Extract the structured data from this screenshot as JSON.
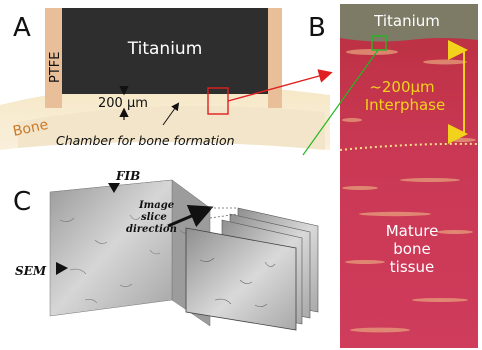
{
  "panels": {
    "a": {
      "letter": "A",
      "titanium": "Titanium",
      "ptfe": "PTFE",
      "bone": "Bone",
      "gap": "200 µm",
      "chamber": "Chamber for bone formation"
    },
    "b": {
      "letter": "B",
      "titanium": "Titanium",
      "interphase_size": "~200µm",
      "interphase": "Interphase",
      "mature_1": "Mature",
      "mature_2": "bone",
      "mature_3": "tissue"
    },
    "c": {
      "letter": "C",
      "fib": "FIB",
      "sem": "SEM",
      "slice_1": "Image",
      "slice_2": "slice",
      "slice_3": "direction"
    }
  },
  "colors": {
    "titanium": "#2e2e2e",
    "ptfe": "#e9bf99",
    "bone": "#f5e6c8",
    "tissue": "#c9344e",
    "yellow": "#f2d21b",
    "red": "#e02020",
    "green": "#22b822"
  }
}
